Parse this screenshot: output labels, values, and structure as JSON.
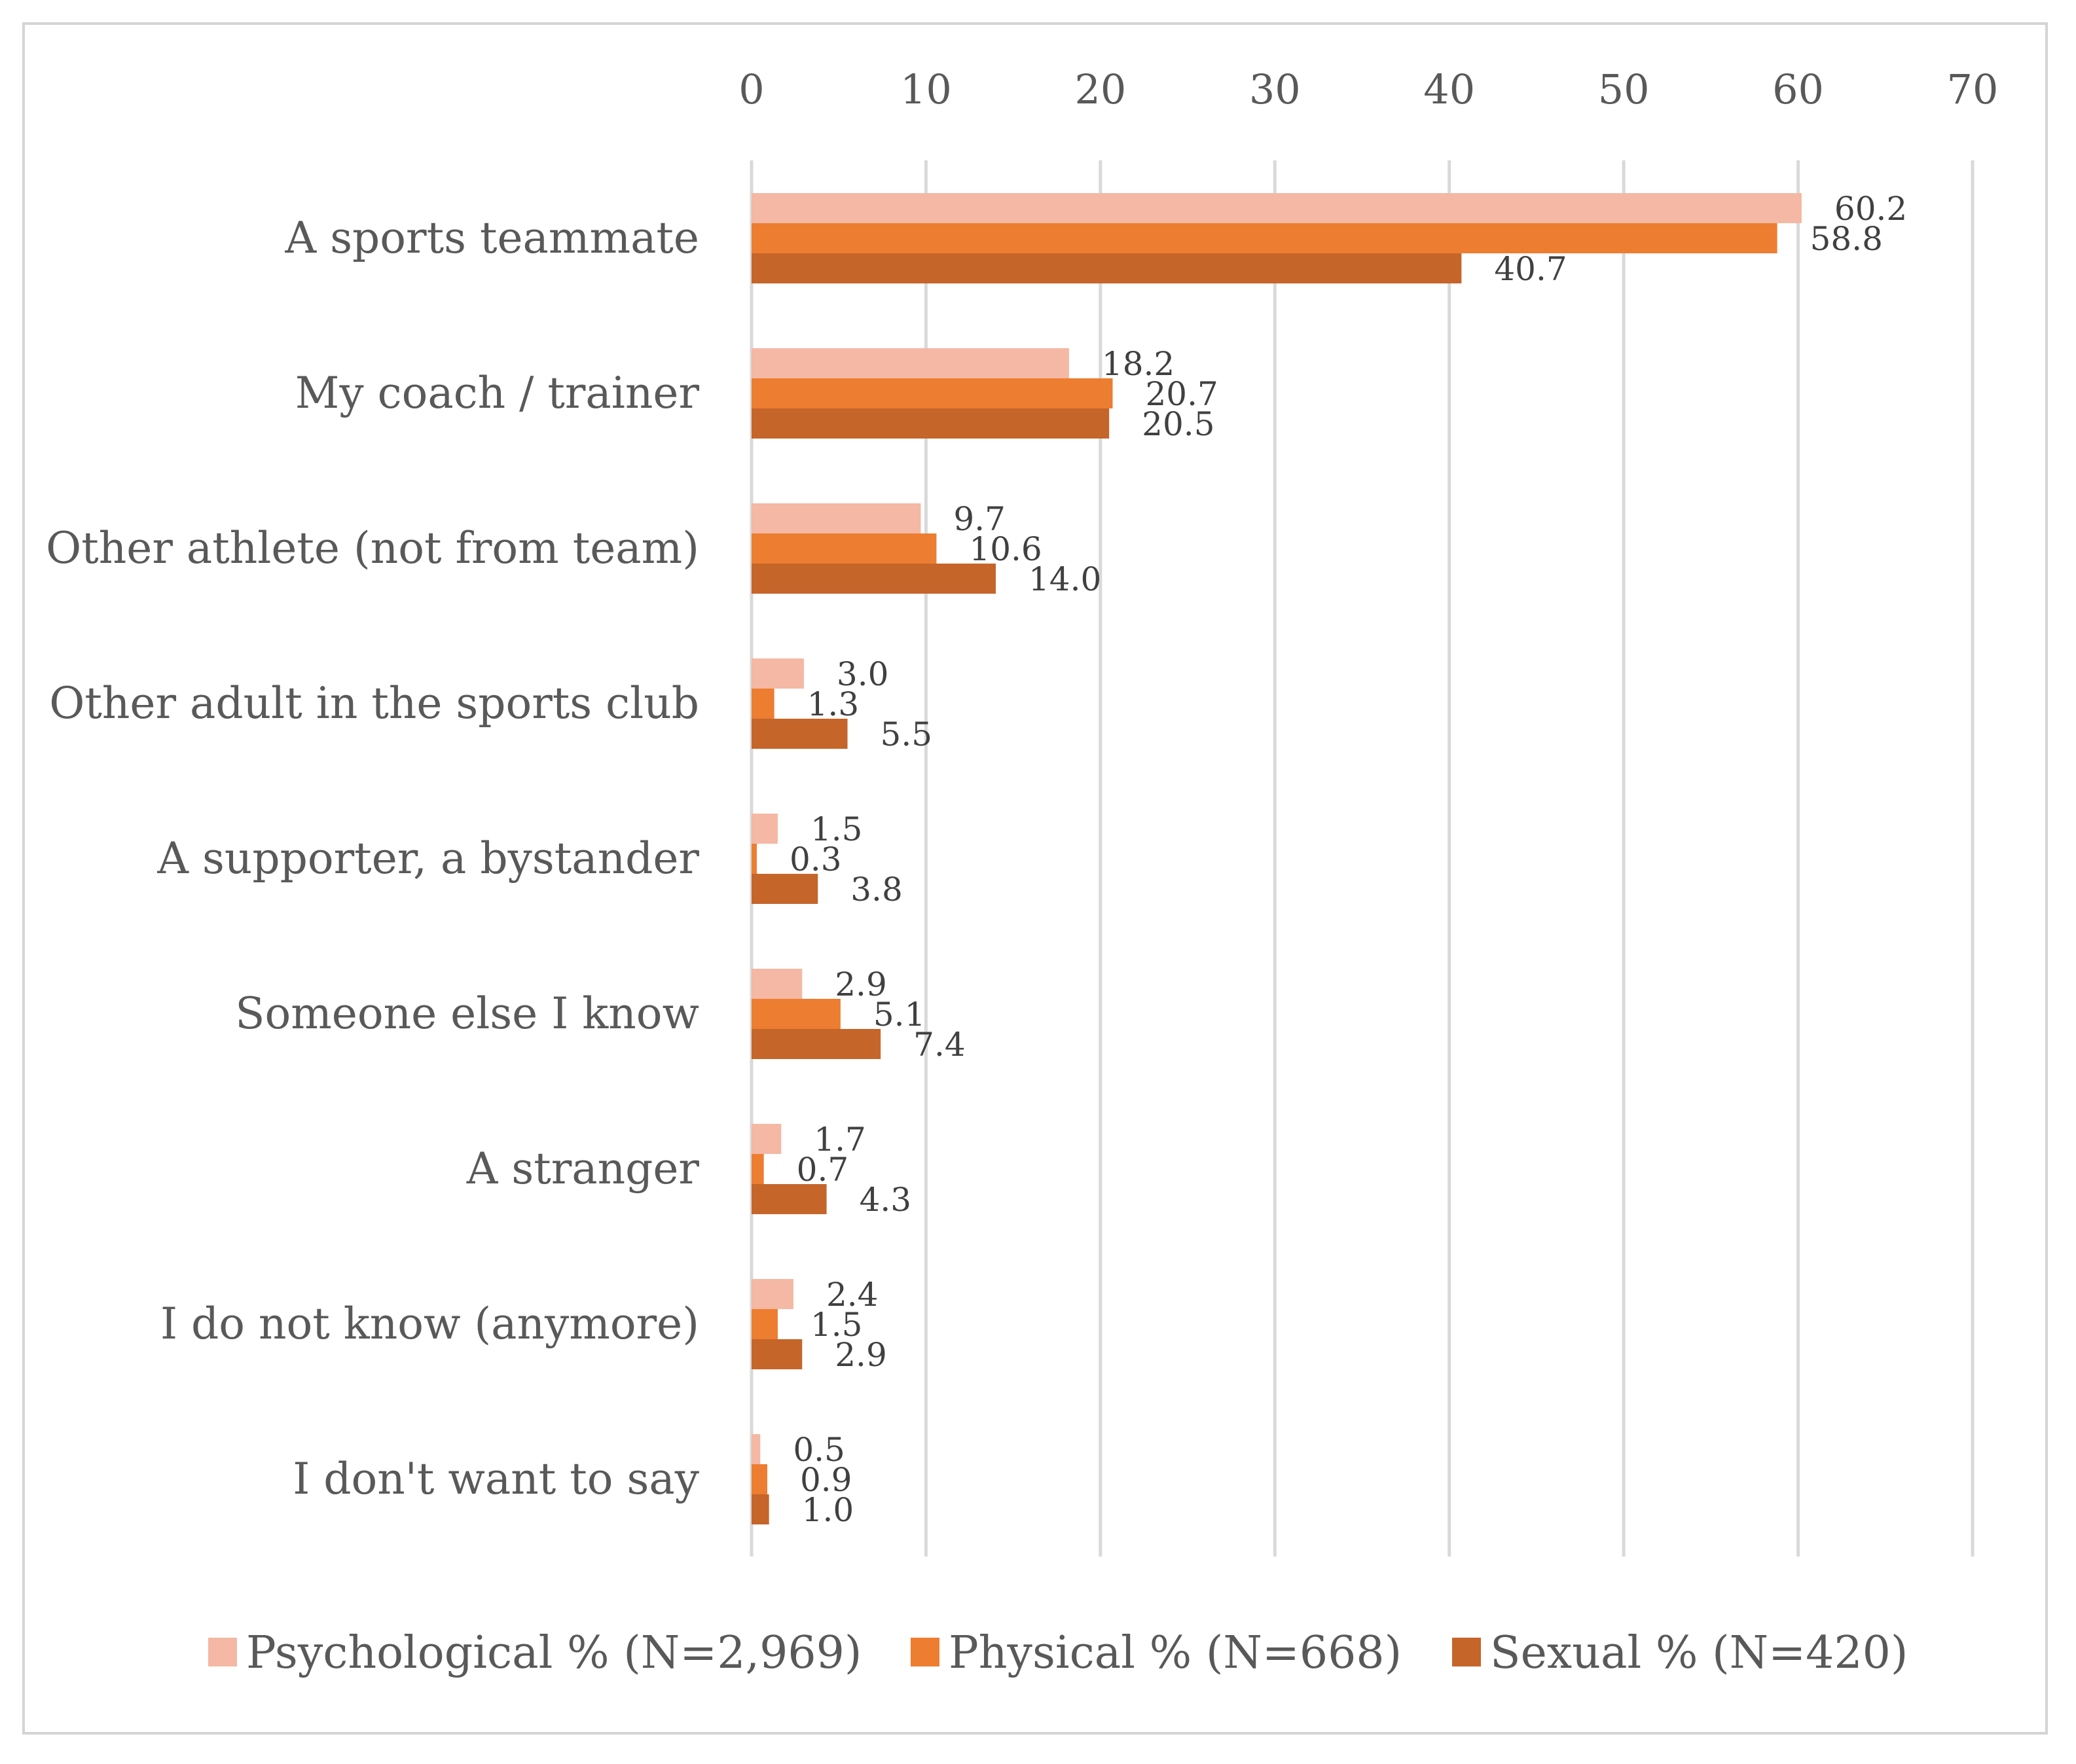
{
  "chart_data": {
    "type": "bar",
    "orientation": "horizontal",
    "title": "",
    "xlabel": "",
    "ylabel": "",
    "xlim": [
      0,
      70
    ],
    "x_ticks": [
      "0",
      "10",
      "20",
      "30",
      "40",
      "50",
      "60",
      "70"
    ],
    "x_axis_position": "top",
    "grid": true,
    "legend_position": "bottom",
    "categories": [
      "A sports teammate",
      "My coach / trainer",
      "Other athlete (not from team)",
      "Other adult in the sports club",
      "A supporter, a bystander",
      "Someone else I know",
      "A stranger",
      "I do not know (anymore)",
      "I don't want to say"
    ],
    "series": [
      {
        "name": "Psychological % (N=2,969)",
        "color": "#f4b8a4",
        "values": [
          60.2,
          18.2,
          9.7,
          3.0,
          1.5,
          2.9,
          1.7,
          2.4,
          0.5
        ],
        "labels": [
          "60.2",
          "18.2",
          "9.7",
          "3.0",
          "1.5",
          "2.9",
          "1.7",
          "2.4",
          "0.5"
        ]
      },
      {
        "name": "Physical % (N=668)",
        "color": "#ed7d31",
        "values": [
          58.8,
          20.7,
          10.6,
          1.3,
          0.3,
          5.1,
          0.7,
          1.5,
          0.9
        ],
        "labels": [
          "58.8",
          "20.7",
          "10.6",
          "1.3",
          "0.3",
          "5.1",
          "0.7",
          "1.5",
          "0.9"
        ]
      },
      {
        "name": "Sexual % (N=420)",
        "color": "#c5652a",
        "values": [
          40.7,
          20.5,
          14.0,
          5.5,
          3.8,
          7.4,
          4.3,
          2.9,
          1.0
        ],
        "labels": [
          "40.7",
          "20.5",
          "14.0",
          "5.5",
          "3.8",
          "7.4",
          "4.3",
          "2.9",
          "1.0"
        ]
      }
    ],
    "gridline_color": "#d9d9d9",
    "text_color": "#595959"
  }
}
